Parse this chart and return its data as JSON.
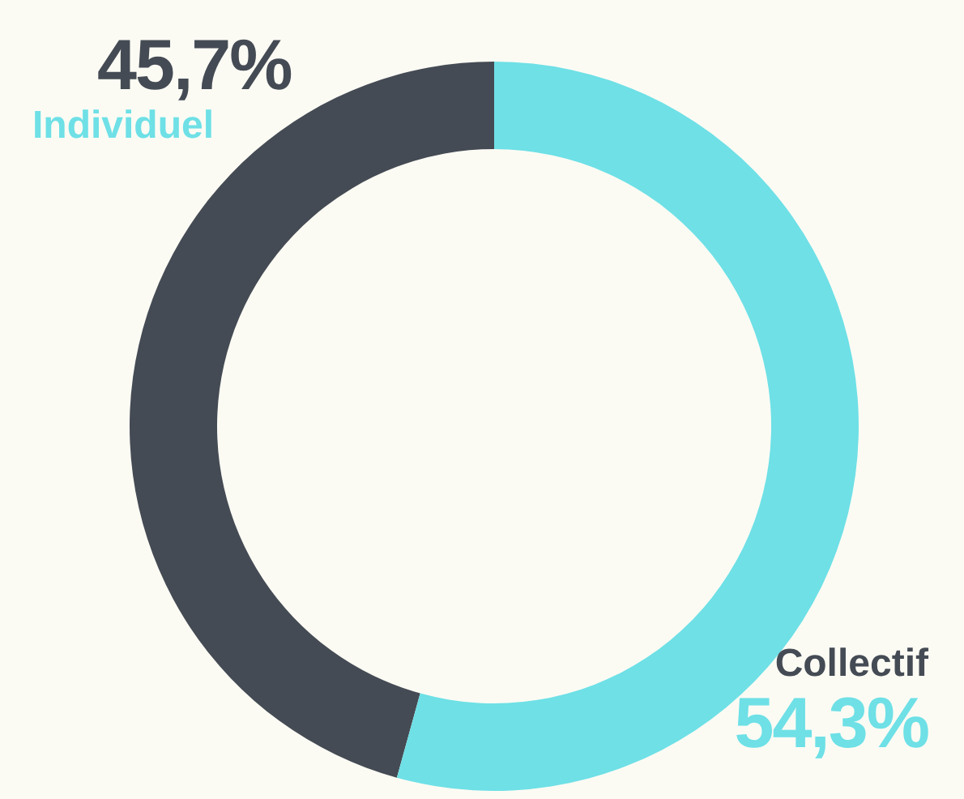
{
  "chart_data": {
    "type": "donut",
    "categories": [
      "Individuel",
      "Collectif"
    ],
    "values": [
      45.7,
      54.3
    ],
    "colors": [
      "#454b54",
      "#6ee0e6"
    ],
    "value_labels": [
      "45,7%",
      "54,3%"
    ],
    "legend": false
  }
}
